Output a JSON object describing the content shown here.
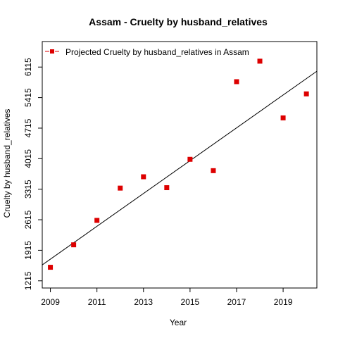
{
  "chart_data": {
    "type": "scatter",
    "title": "Assam  -  Cruelty by husband_relatives",
    "xlabel": "Year",
    "ylabel": "Cruelty by husband_relatives",
    "xlim": [
      2008.65,
      2020.45
    ],
    "ylim": [
      1050,
      6700
    ],
    "x_ticks": [
      2009,
      2011,
      2013,
      2015,
      2017,
      2019
    ],
    "y_ticks": [
      1215,
      1915,
      2615,
      3315,
      4015,
      4715,
      5415,
      6115
    ],
    "series": [
      {
        "name": "Projected  Cruelty by husband_relatives  in  Assam",
        "color": "#dd0000",
        "marker": "square",
        "points": [
          {
            "x": 2009,
            "y": 1525
          },
          {
            "x": 2010,
            "y": 2040
          },
          {
            "x": 2011,
            "y": 2600
          },
          {
            "x": 2012,
            "y": 3340
          },
          {
            "x": 2013,
            "y": 3600
          },
          {
            "x": 2014,
            "y": 3350
          },
          {
            "x": 2015,
            "y": 4000
          },
          {
            "x": 2016,
            "y": 3740
          },
          {
            "x": 2017,
            "y": 5780
          },
          {
            "x": 2018,
            "y": 6250
          },
          {
            "x": 2019,
            "y": 4950
          },
          {
            "x": 2020,
            "y": 5500
          }
        ]
      }
    ],
    "trend_line": {
      "color": "#000000",
      "from": {
        "x": 2008.65,
        "y": 1580
      },
      "to": {
        "x": 2020.45,
        "y": 6020
      }
    },
    "legend_position": "top-left",
    "grid": false
  }
}
